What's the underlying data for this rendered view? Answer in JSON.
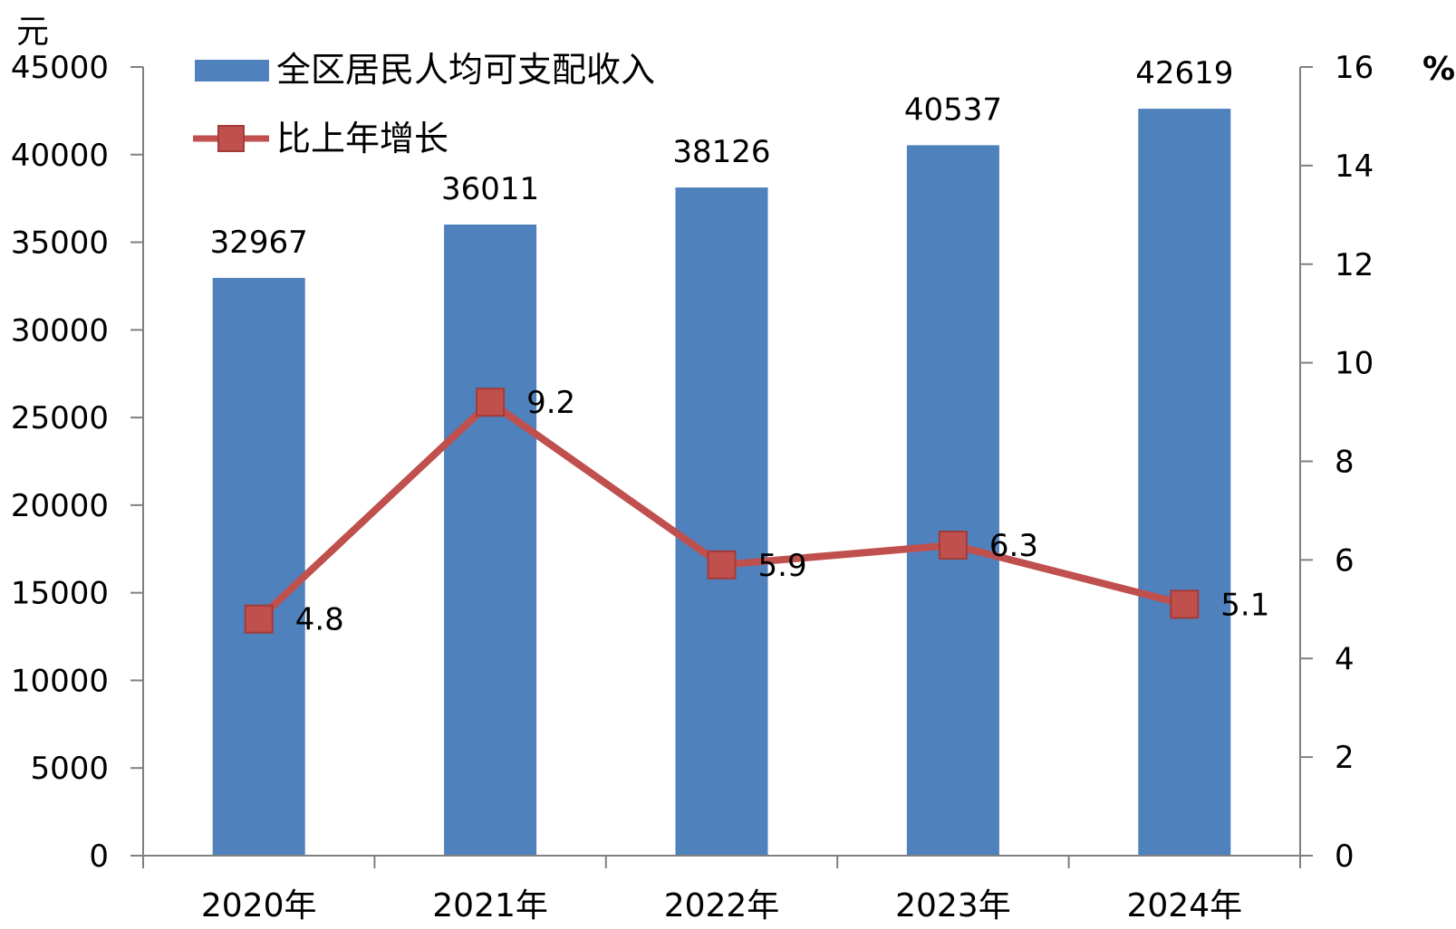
{
  "chart_data": {
    "type": "bar",
    "categories": [
      "2020年",
      "2021年",
      "2022年",
      "2023年",
      "2024年"
    ],
    "series": [
      {
        "name": "全区居民人均可支配收入",
        "type": "bar",
        "axis": "left",
        "values": [
          32967,
          36011,
          38126,
          40537,
          42619
        ],
        "color": "#4F81BD"
      },
      {
        "name": "比上年增长",
        "type": "line",
        "axis": "right",
        "values": [
          4.8,
          9.2,
          5.9,
          6.3,
          5.1
        ],
        "color": "#C0504D"
      }
    ],
    "left_axis": {
      "unit": "元",
      "ylim": [
        0,
        45000
      ],
      "ticks": [
        0,
        5000,
        10000,
        15000,
        20000,
        25000,
        30000,
        35000,
        40000,
        45000
      ]
    },
    "right_axis": {
      "unit": "%",
      "ylim": [
        0,
        16
      ],
      "ticks": [
        0,
        2,
        4,
        6,
        8,
        10,
        12,
        14,
        16
      ]
    },
    "legend": "top-left",
    "grid": false
  }
}
